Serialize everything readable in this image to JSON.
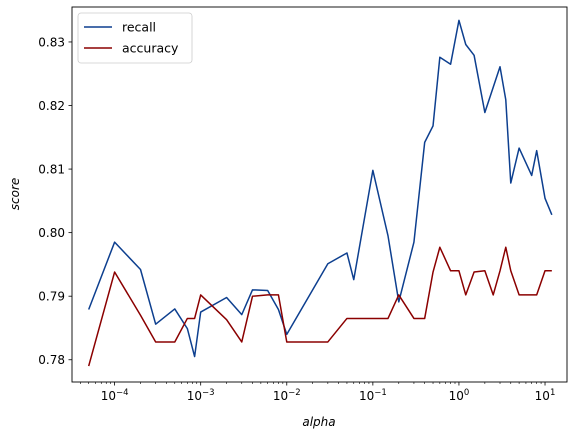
{
  "chart_data": {
    "type": "line",
    "xscale": "log",
    "xlabel": "alpha",
    "ylabel": "score",
    "xlim": [
      3.2e-05,
      18
    ],
    "ylim": [
      0.7765,
      0.8355
    ],
    "x_ticks": [
      {
        "value": 0.0001,
        "base": "10",
        "exp": "−4"
      },
      {
        "value": 0.001,
        "base": "10",
        "exp": "−3"
      },
      {
        "value": 0.01,
        "base": "10",
        "exp": "−2"
      },
      {
        "value": 0.1,
        "base": "10",
        "exp": "−1"
      },
      {
        "value": 1,
        "base": "10",
        "exp": "0"
      },
      {
        "value": 10,
        "base": "10",
        "exp": "1"
      }
    ],
    "y_ticks": [
      {
        "value": 0.78,
        "label": "0.78"
      },
      {
        "value": 0.79,
        "label": "0.79"
      },
      {
        "value": 0.8,
        "label": "0.80"
      },
      {
        "value": 0.81,
        "label": "0.81"
      },
      {
        "value": 0.82,
        "label": "0.82"
      },
      {
        "value": 0.83,
        "label": "0.83"
      }
    ],
    "grid": false,
    "legend_position": "top-left",
    "series": [
      {
        "name": "recall",
        "color": "#0d3f8f",
        "points": [
          [
            5e-05,
            0.7879
          ],
          [
            0.0001,
            0.7985
          ],
          [
            0.0002,
            0.7942
          ],
          [
            0.0003,
            0.7856
          ],
          [
            0.0005,
            0.788
          ],
          [
            0.0007,
            0.7849
          ],
          [
            0.00085,
            0.7805
          ],
          [
            0.001,
            0.7875
          ],
          [
            0.002,
            0.7898
          ],
          [
            0.003,
            0.7871
          ],
          [
            0.004,
            0.791
          ],
          [
            0.006,
            0.7909
          ],
          [
            0.008,
            0.7879
          ],
          [
            0.01,
            0.784
          ],
          [
            0.03,
            0.7951
          ],
          [
            0.05,
            0.7968
          ],
          [
            0.06,
            0.7926
          ],
          [
            0.1,
            0.8098
          ],
          [
            0.15,
            0.7995
          ],
          [
            0.2,
            0.7891
          ],
          [
            0.3,
            0.7985
          ],
          [
            0.4,
            0.8142
          ],
          [
            0.5,
            0.8168
          ],
          [
            0.6,
            0.8276
          ],
          [
            0.8,
            0.8265
          ],
          [
            1.0,
            0.8334
          ],
          [
            1.2,
            0.8296
          ],
          [
            1.5,
            0.8279
          ],
          [
            2.0,
            0.8189
          ],
          [
            3.0,
            0.8261
          ],
          [
            3.5,
            0.8209
          ],
          [
            4.0,
            0.8078
          ],
          [
            5.0,
            0.8133
          ],
          [
            7.0,
            0.809
          ],
          [
            8.0,
            0.8129
          ],
          [
            10.0,
            0.8054
          ],
          [
            12.0,
            0.8028
          ]
        ]
      },
      {
        "name": "accuracy",
        "color": "#8b0000",
        "points": [
          [
            5e-05,
            0.779
          ],
          [
            0.0001,
            0.7938
          ],
          [
            0.0002,
            0.787
          ],
          [
            0.0003,
            0.7828
          ],
          [
            0.0005,
            0.7828
          ],
          [
            0.0007,
            0.7865
          ],
          [
            0.00085,
            0.7865
          ],
          [
            0.001,
            0.7902
          ],
          [
            0.002,
            0.7863
          ],
          [
            0.003,
            0.7828
          ],
          [
            0.004,
            0.79
          ],
          [
            0.006,
            0.7902
          ],
          [
            0.008,
            0.7902
          ],
          [
            0.01,
            0.7828
          ],
          [
            0.03,
            0.7828
          ],
          [
            0.05,
            0.7865
          ],
          [
            0.1,
            0.7865
          ],
          [
            0.15,
            0.7865
          ],
          [
            0.2,
            0.7902
          ],
          [
            0.3,
            0.7865
          ],
          [
            0.4,
            0.7865
          ],
          [
            0.5,
            0.7938
          ],
          [
            0.6,
            0.7977
          ],
          [
            0.8,
            0.794
          ],
          [
            1.0,
            0.794
          ],
          [
            1.2,
            0.7902
          ],
          [
            1.5,
            0.7938
          ],
          [
            2.0,
            0.794
          ],
          [
            2.5,
            0.7902
          ],
          [
            3.0,
            0.794
          ],
          [
            3.5,
            0.7977
          ],
          [
            4.0,
            0.794
          ],
          [
            5.0,
            0.7902
          ],
          [
            7.0,
            0.7902
          ],
          [
            8.0,
            0.7902
          ],
          [
            10.0,
            0.794
          ],
          [
            12.0,
            0.794
          ]
        ]
      }
    ]
  }
}
